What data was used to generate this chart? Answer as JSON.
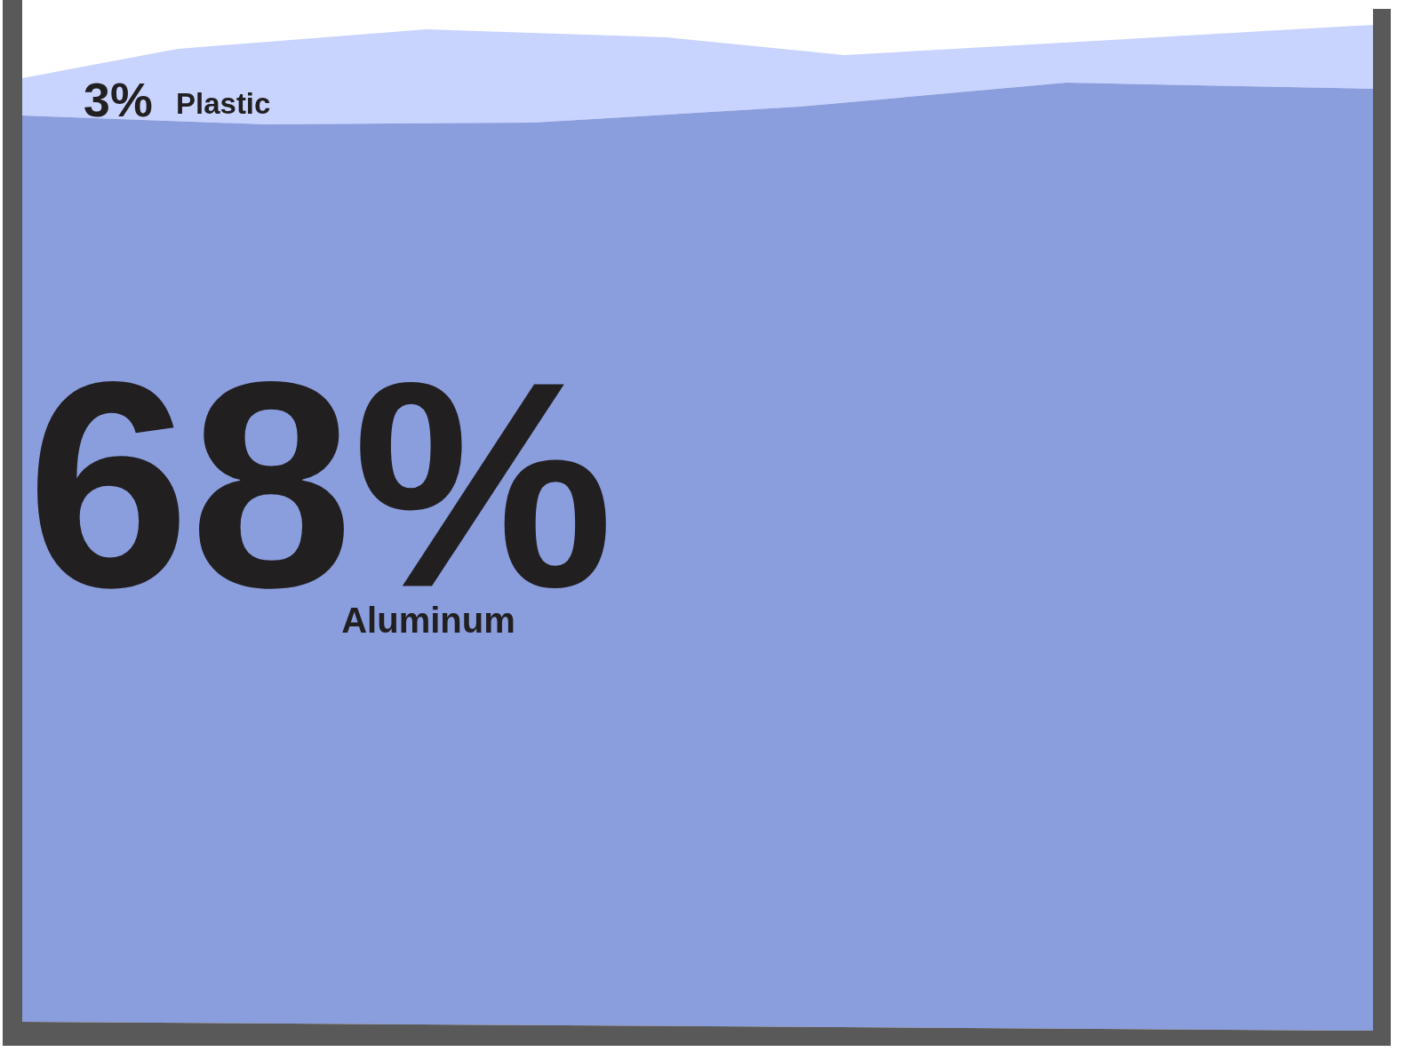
{
  "chart_data": {
    "type": "other",
    "categories": [
      "Plastic",
      "Aluminum"
    ],
    "values": [
      3,
      68
    ],
    "value_labels": [
      "3%",
      "68%"
    ],
    "colors": [
      "#c8d3fe",
      "#8a9ddd"
    ]
  }
}
